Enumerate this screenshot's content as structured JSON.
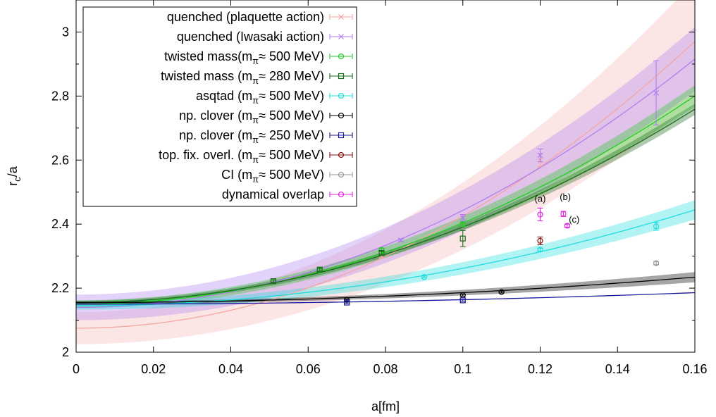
{
  "chart_data": {
    "type": "scatter",
    "title": "",
    "xlabel": "a[fm]",
    "ylabel_main": "r",
    "ylabel_sub": "c",
    "ylabel_tail": "/a",
    "xlim": [
      0,
      0.16
    ],
    "ylim": [
      2.0,
      3.1
    ],
    "xticks": [
      0,
      0.02,
      0.04,
      0.06,
      0.08,
      0.1,
      0.12,
      0.14,
      0.16
    ],
    "xtick_labels": [
      "0",
      "0.02",
      "0.04",
      "0.06",
      "0.08",
      "0.1",
      "0.12",
      "0.14",
      "0.16"
    ],
    "yticks": [
      2.0,
      2.2,
      2.4,
      2.6,
      2.8,
      3.0
    ],
    "ytick_labels": [
      "2",
      "2.2",
      "2.4",
      "2.6",
      "2.8",
      "3"
    ],
    "grid": false,
    "legend_position": "top-left",
    "series": [
      {
        "name": "quenched (plaquette action)",
        "color": "#f4a6a0",
        "marker": "x",
        "points": [
          [
            0.079,
            2.3,
            0.005
          ],
          [
            0.12,
            2.6,
            0.02
          ]
        ],
        "fit": {
          "a": 2.075,
          "c": 35.0,
          "band": [
            0.05,
            0.0,
            0.14
          ]
        }
      },
      {
        "name": "quenched (Iwasaki action)",
        "color": "#b07ef0",
        "marker": "x",
        "points": [
          [
            0.084,
            2.35,
            0.004
          ],
          [
            0.1,
            2.42,
            0.01
          ],
          [
            0.12,
            2.615,
            0.02
          ],
          [
            0.15,
            2.81,
            0.1
          ]
        ],
        "fit": {
          "a": 2.14,
          "c": 30.3,
          "band": [
            0.04,
            0.0,
            0.06
          ]
        }
      },
      {
        "name": "twisted mass(m≈ 500 MeV)",
        "color": "#22cc22",
        "marker": "circle",
        "points": [
          [
            0.063,
            2.255,
            0.005
          ],
          [
            0.079,
            2.32,
            0.005
          ],
          [
            0.1,
            2.4,
            0.006
          ]
        ],
        "fit": {
          "a": 2.15,
          "c": 25.4,
          "band": [
            0.012,
            0.0,
            0.022
          ]
        }
      },
      {
        "name": "twisted mass (m≈ 280 MeV)",
        "color": "#1a6b1a",
        "marker": "square",
        "points": [
          [
            0.051,
            2.222,
            0.004
          ],
          [
            0.063,
            2.258,
            0.005
          ],
          [
            0.079,
            2.31,
            0.005
          ],
          [
            0.1,
            2.355,
            0.025
          ]
        ],
        "fit": {
          "a": 2.155,
          "c": 23.6,
          "band": [
            0.006,
            0.0,
            0.012
          ]
        }
      },
      {
        "name": "asqtad (m≈ 500 MeV)",
        "color": "#22dddd",
        "marker": "circle",
        "points": [
          [
            0.09,
            2.235,
            0.003
          ],
          [
            0.12,
            2.32,
            0.005
          ],
          [
            0.15,
            2.393,
            0.012
          ]
        ],
        "fit": {
          "a": 2.145,
          "c": 11.7,
          "band": [
            0.012,
            0.0,
            0.018
          ]
        }
      },
      {
        "name": "np. clover (m≈ 500 MeV)",
        "color": "#000000",
        "marker": "circle",
        "points": [
          [
            0.07,
            2.163,
            0.003
          ],
          [
            0.1,
            2.178,
            0.003
          ],
          [
            0.11,
            2.188,
            0.003
          ]
        ],
        "fit": {
          "a": 2.155,
          "c": 3.1,
          "band": [
            0.004,
            0.0,
            0.012
          ]
        }
      },
      {
        "name": "np. clover (m≈ 250 MeV)",
        "color": "#1a1a99",
        "marker": "square",
        "points": [
          [
            0.07,
            2.155,
            0.003
          ],
          [
            0.1,
            2.162,
            0.003
          ]
        ],
        "fit": {
          "a": 2.15,
          "c": 1.4,
          "band": [
            0.0,
            0.0,
            0.0
          ]
        }
      },
      {
        "name": "top. fix. overl. (m≈ 500 MeV)",
        "color": "#8b1010",
        "marker": "circle",
        "points": [
          [
            0.12,
            2.348,
            0.012
          ]
        ]
      },
      {
        "name": "CI (m≈ 500 MeV)",
        "color": "#999999",
        "marker": "circle",
        "points": [
          [
            0.15,
            2.278,
            0.005
          ]
        ]
      },
      {
        "name": "dynamical overlap",
        "color": "#e020e0",
        "marker": "circle",
        "points": [
          [
            0.12,
            2.43,
            0.02
          ],
          [
            0.126,
            2.432,
            0.008
          ],
          [
            0.127,
            2.395,
            0.005
          ]
        ]
      }
    ],
    "legend_subscript": "π",
    "annotations": [
      {
        "text": "(a)",
        "x": 0.12,
        "y": 2.47
      },
      {
        "text": "(b)",
        "x": 0.1265,
        "y": 2.475
      },
      {
        "text": "(c)",
        "x": 0.1288,
        "y": 2.405
      }
    ]
  }
}
